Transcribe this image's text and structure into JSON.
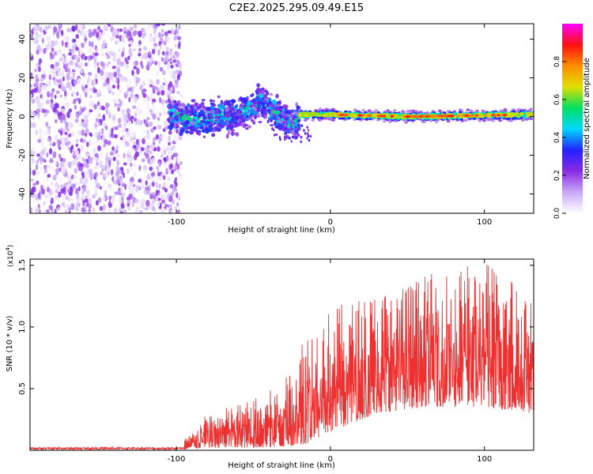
{
  "figure_title": "C2E2.2025.295.09.49.E15",
  "colors": {
    "signal": "#ee3030",
    "frame": "#000000",
    "noise": "#7a33f5"
  },
  "chart_data": [
    {
      "type": "heatmap",
      "title": "C2E2.2025.295.09.49.E15",
      "xlabel": "Height of straight line (km)",
      "ylabel": "Frequency (Hz)",
      "xlim": [
        -195,
        132
      ],
      "ylim": [
        -50,
        48
      ],
      "x_ticks": [
        -100,
        0,
        100
      ],
      "x_tick_labels": [
        "-100",
        "0",
        "100"
      ],
      "y_ticks": [
        -40,
        -20,
        0,
        20,
        40
      ],
      "y_tick_labels": [
        "-40",
        "-20",
        "0",
        "20",
        "40"
      ],
      "colorbar": {
        "label": "Normalized spectral amplitude",
        "range": [
          0,
          1
        ],
        "ticks": [
          0.0,
          0.2,
          0.4,
          0.6,
          0.8
        ],
        "tick_labels": [
          "0.0",
          "0.2",
          "0.4",
          "0.6",
          "0.8"
        ],
        "colormap": [
          "#ffffff",
          "#c8a8f8",
          "#8a2be2",
          "#2222ff",
          "#00d8ff",
          "#00e060",
          "#e0e000",
          "#ff8c00",
          "#ff1010",
          "#ff00ff"
        ]
      },
      "regions": [
        {
          "x_range": [
            -195,
            -105
          ],
          "freq_range": [
            -50,
            48
          ],
          "amplitude": [
            0.02,
            0.25
          ],
          "description_hidden": true
        },
        {
          "x_range": [
            -105,
            -20
          ],
          "center_hz": [
            [
              -105,
              0
            ],
            [
              -80,
              -1
            ],
            [
              -60,
              1
            ],
            [
              -45,
              8
            ],
            [
              -35,
              2
            ],
            [
              -25,
              -5
            ],
            [
              -20,
              0
            ]
          ],
          "halfwidth_hz": 6,
          "amplitude": [
            0.15,
            0.6
          ]
        },
        {
          "x_range": [
            -20,
            132
          ],
          "center_hz": [
            [
              -20,
              1
            ],
            [
              0,
              1
            ],
            [
              50,
              0
            ],
            [
              132,
              1
            ]
          ],
          "halfwidth_hz": 3,
          "peak_amplitude": 0.9
        }
      ]
    },
    {
      "type": "line",
      "xlabel": "Height of straight line (km)",
      "ylabel": "SNR (10 * v/v)",
      "y_multiplier_label": "(x10",
      "y_multiplier_exp": "4",
      "y_multiplier_close": ")",
      "xlim": [
        -195,
        132
      ],
      "ylim": [
        0,
        1.55
      ],
      "x_ticks": [
        -100,
        0,
        100
      ],
      "x_tick_labels": [
        "-100",
        "0",
        "100"
      ],
      "y_ticks": [
        0.5,
        1.0,
        1.5
      ],
      "y_tick_labels": [
        "0.5",
        "1.0",
        "1.5"
      ],
      "series": [
        {
          "name": "SNR",
          "envelope": [
            {
              "x": -195,
              "floor": 0.0,
              "peak": 0.03
            },
            {
              "x": -100,
              "floor": 0.0,
              "peak": 0.04
            },
            {
              "x": -92,
              "floor": 0.01,
              "peak": 0.12
            },
            {
              "x": -80,
              "floor": 0.02,
              "peak": 0.3
            },
            {
              "x": -50,
              "floor": 0.02,
              "peak": 0.42
            },
            {
              "x": -30,
              "floor": 0.03,
              "peak": 0.55
            },
            {
              "x": -15,
              "floor": 0.05,
              "peak": 1.05
            },
            {
              "x": 0,
              "floor": 0.15,
              "peak": 1.15
            },
            {
              "x": 30,
              "floor": 0.3,
              "peak": 1.3
            },
            {
              "x": 60,
              "floor": 0.35,
              "peak": 1.42
            },
            {
              "x": 100,
              "floor": 0.35,
              "peak": 1.55
            },
            {
              "x": 132,
              "floor": 0.3,
              "peak": 1.35
            }
          ]
        }
      ]
    }
  ]
}
